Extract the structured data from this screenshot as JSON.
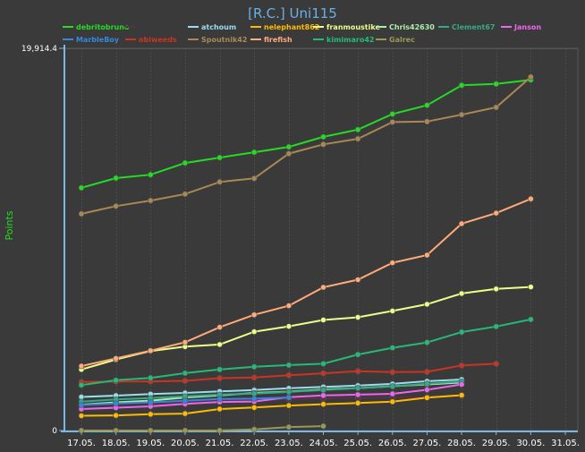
{
  "chart_data": {
    "type": "line",
    "title": "[R.C.] Uni115",
    "ylabel": "Points",
    "xlabel": "",
    "y_tick_labels": [
      "19,914.4",
      "0"
    ],
    "ylim": [
      0,
      19914.4
    ],
    "x": [
      "17.05.",
      "18.05.",
      "19.05.",
      "20.05.",
      "21.05.",
      "22.05.",
      "23.05.",
      "24.05.",
      "25.05.",
      "26.05.",
      "27.05.",
      "28.05.",
      "29.05.",
      "30.05.",
      "31.05."
    ],
    "grid": true,
    "legend_position": "top",
    "series": [
      {
        "name": "debritobruno",
        "color": "#22dd22",
        "values": [
          12650,
          13150,
          13330,
          13940,
          14220,
          14500,
          14780,
          15300,
          15680,
          16490,
          16950,
          17990,
          18060,
          18270,
          null
        ]
      },
      {
        "name": "",
        "color": "#5a2f4a",
        "values": [
          1300,
          1380,
          1420,
          1480,
          1530,
          1580,
          1630,
          1680,
          1700,
          1730,
          1750,
          1780,
          null,
          null,
          null
        ]
      },
      {
        "name": "atchoum",
        "color": "#99ddee",
        "values": [
          1750,
          1820,
          1900,
          1960,
          2040,
          2110,
          2200,
          2270,
          2340,
          2430,
          2570,
          2660,
          null,
          null,
          null
        ]
      },
      {
        "name": "nelephant862",
        "color": "#ffbb00",
        "values": [
          770,
          790,
          850,
          880,
          1120,
          1200,
          1300,
          1370,
          1430,
          1500,
          1710,
          1840,
          null,
          null,
          null
        ]
      },
      {
        "name": "franmoustike",
        "color": "#eeff88",
        "values": [
          3180,
          3700,
          4140,
          4370,
          4480,
          5150,
          5430,
          5760,
          5900,
          6230,
          6580,
          7140,
          7380,
          7480,
          null
        ]
      },
      {
        "name": "Chris42630",
        "color": "#aaeeaa",
        "values": [
          1350,
          1470,
          1560,
          1720,
          1830,
          1960,
          2030,
          2140,
          2210,
          2310,
          2400,
          2500,
          null,
          null,
          null
        ]
      },
      {
        "name": "Clement67",
        "color": "#33aa88",
        "values": [
          1500,
          1620,
          1690,
          1780,
          1870,
          1920,
          2010,
          2110,
          2210,
          2300,
          2440,
          2550,
          null,
          null,
          null
        ]
      },
      {
        "name": "Janson",
        "color": "#ee66ee",
        "values": [
          1120,
          1190,
          1260,
          1390,
          1490,
          1510,
          1740,
          1830,
          1870,
          1910,
          2120,
          2400,
          null,
          null,
          null
        ]
      },
      {
        "name": "MarbleBoy",
        "color": "#3388dd",
        "values": [
          1330,
          1410,
          1470,
          1550,
          1640,
          1660,
          1720,
          null,
          null,
          null,
          null,
          null,
          null,
          null,
          null
        ]
      },
      {
        "name": "obiweeds",
        "color": "#cc3322",
        "values": [
          2530,
          2550,
          2560,
          2590,
          2730,
          2760,
          2880,
          2980,
          3090,
          3040,
          3060,
          3390,
          3480,
          null,
          null
        ]
      },
      {
        "name": "Spoutnik42",
        "color": "#aa8855",
        "values": [
          11290,
          11690,
          11980,
          12320,
          12950,
          13140,
          14430,
          14910,
          15200,
          16070,
          16100,
          16460,
          16840,
          18420,
          null
        ]
      },
      {
        "name": "firefish",
        "color": "#ffaa77",
        "values": [
          3360,
          3760,
          4160,
          4600,
          5380,
          6030,
          6500,
          7460,
          7860,
          8740,
          9140,
          10780,
          11330,
          12070,
          null
        ]
      },
      {
        "name": "kimimaro42",
        "color": "#22bb77",
        "values": [
          2370,
          2620,
          2740,
          2990,
          3180,
          3320,
          3410,
          3480,
          3960,
          4310,
          4590,
          5130,
          5420,
          5790,
          null
        ]
      },
      {
        "name": "Galrec",
        "color": "#999955",
        "values": [
          0,
          0,
          0,
          0,
          0,
          60,
          180,
          230,
          null,
          null,
          null,
          null,
          null,
          null,
          null
        ]
      }
    ]
  }
}
